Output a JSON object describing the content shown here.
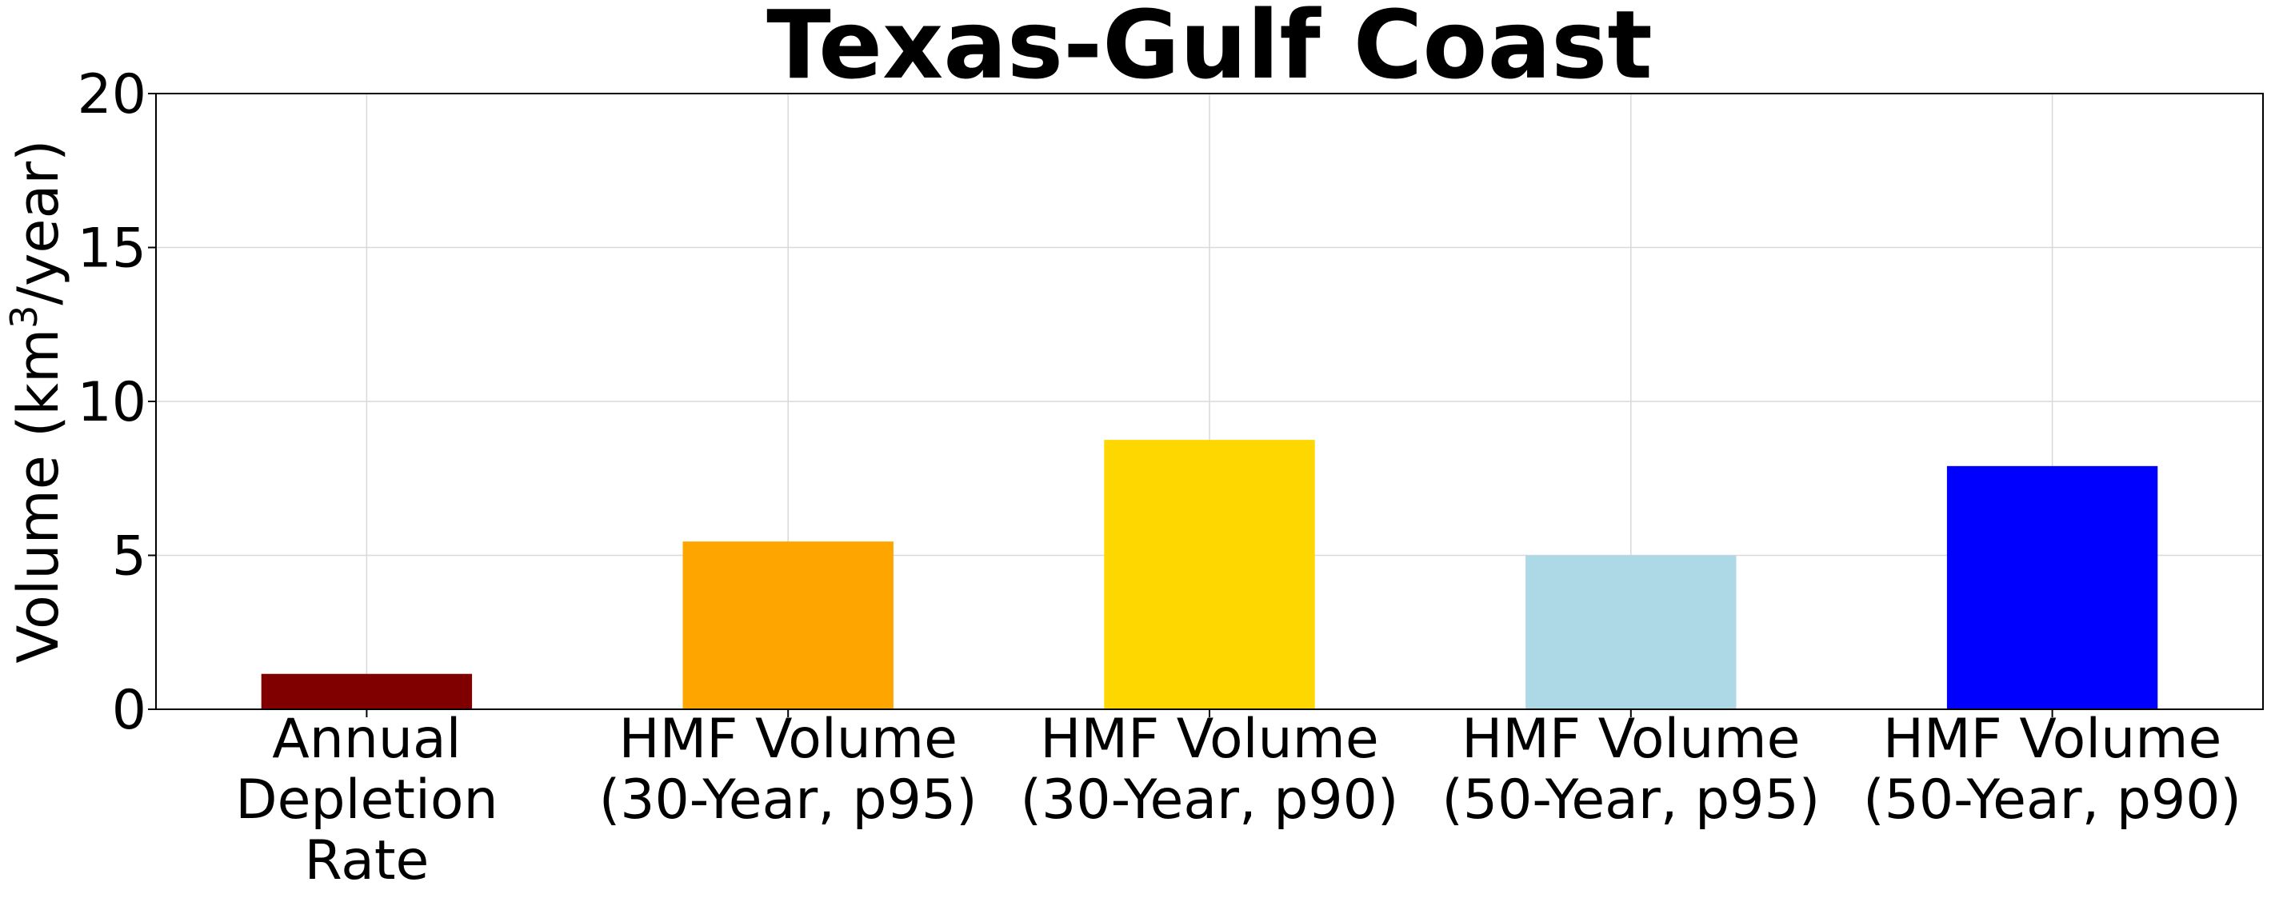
{
  "chart_data": {
    "type": "bar",
    "title": "Texas-Gulf Coast",
    "ylabel": "Volume (km³/year)",
    "ylabel_parts": {
      "pre": "Volume (km",
      "sup": "3",
      "post": "/year)"
    },
    "xlabel": "",
    "ylim": [
      0,
      20
    ],
    "yticks": [
      "0",
      "5",
      "10",
      "15",
      "20"
    ],
    "grid": true,
    "categories": [
      "Annual Depletion Rate",
      "HMF Volume (30-Year, p95)",
      "HMF Volume (30-Year, p90)",
      "HMF Volume (50-Year, p95)",
      "HMF Volume (50-Year, p90)"
    ],
    "category_lines": [
      [
        "Annual",
        "Depletion",
        "Rate"
      ],
      [
        "HMF Volume",
        "(30-Year, p95)"
      ],
      [
        "HMF Volume",
        "(30-Year, p90)"
      ],
      [
        "HMF Volume",
        "(50-Year, p95)"
      ],
      [
        "HMF Volume",
        "(50-Year, p90)"
      ]
    ],
    "values": [
      1.15,
      5.45,
      8.75,
      5.0,
      7.9
    ],
    "colors": [
      "#800000",
      "#FFA500",
      "#FFD700",
      "#ADD8E6",
      "#0000FF"
    ]
  }
}
